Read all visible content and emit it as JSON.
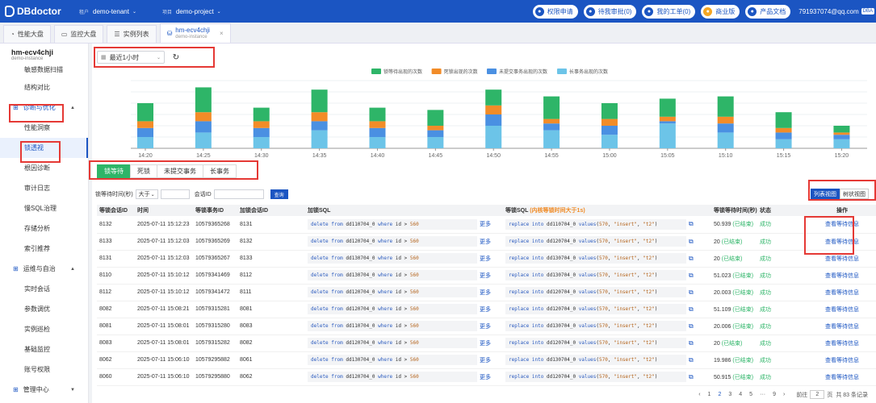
{
  "topbar": {
    "logo": "DBdoctor",
    "tenant_label": "租户",
    "tenant_value": "demo-tenant",
    "project_label": "项目",
    "project_value": "demo-project",
    "buttons": [
      {
        "label": "权限申请",
        "icon": "key-icon"
      },
      {
        "label": "待我审批(0)",
        "icon": "approval-icon"
      },
      {
        "label": "我的工单(0)",
        "icon": "ticket-icon"
      },
      {
        "label": "商业版",
        "icon": "crown-icon",
        "color": "#f5a623"
      },
      {
        "label": "产品文档",
        "icon": "doc-icon"
      }
    ],
    "email": "791937074@qq.com",
    "role": "DBA"
  },
  "tabs": [
    {
      "label": "性能大盘",
      "icon": "dashboard-icon"
    },
    {
      "label": "监控大盘",
      "icon": "monitor-icon"
    },
    {
      "label": "实例列表",
      "icon": "list-icon"
    },
    {
      "label": "hm-ecv4chji",
      "sub": "demo-instance",
      "icon": "database-icon",
      "active": true
    }
  ],
  "sidebar": {
    "title": "hm-ecv4chji",
    "subtitle": "demo-instance",
    "items_top": [
      "敏感数据扫描",
      "结构对比"
    ],
    "group1": "诊断与优化",
    "group1_items": [
      "性能洞察",
      "锁透视",
      "根因诊断",
      "审计日志",
      "慢SQL治理",
      "存储分析",
      "索引推荐"
    ],
    "group2": "运维与自治",
    "group2_items": [
      "实时会话",
      "参数调优",
      "实例巡检",
      "基础监控",
      "账号权限"
    ],
    "group3": "管理中心"
  },
  "controls": {
    "time_range": "最近1小时"
  },
  "chart_data": {
    "type": "bar",
    "stacked": true,
    "legend_position": "top",
    "categories": [
      "14:20",
      "14:25",
      "14:30",
      "14:35",
      "14:40",
      "14:45",
      "14:50",
      "14:55",
      "15:00",
      "15:05",
      "15:10",
      "15:15",
      "15:20"
    ],
    "tick_labels": [
      "14:20",
      "14:25",
      "14:30",
      "14:35",
      "14:40",
      "14:45",
      "14:50",
      "14:55",
      "15:00",
      "15:05",
      "15:10",
      "15:15",
      "15:20"
    ],
    "ylim": [
      0,
      30
    ],
    "series": [
      {
        "name": "长事务出现的次数",
        "color": "#6cc4e8",
        "values": [
          5,
          7,
          5,
          8,
          5,
          5,
          10,
          8,
          6,
          11,
          7,
          4,
          4
        ]
      },
      {
        "name": "未提交事务出现的次数",
        "color": "#4a90e2",
        "values": [
          4,
          5,
          4,
          4,
          4,
          3,
          5,
          3,
          4,
          1,
          4,
          3,
          2
        ]
      },
      {
        "name": "死锁出现的次数",
        "color": "#f28c28",
        "values": [
          3,
          4,
          3,
          4,
          3,
          2,
          4,
          2,
          3,
          2,
          3,
          2,
          1
        ]
      },
      {
        "name": "锁等待出现的次数",
        "color": "#2eb568",
        "values": [
          8,
          11,
          6,
          10,
          6,
          7,
          7,
          10,
          7,
          8,
          9,
          7,
          3
        ]
      }
    ],
    "legend_order": [
      "锁等待出现的次数",
      "死锁出现的次数",
      "未提交事务出现的次数",
      "长事务出现的次数"
    ]
  },
  "subtabs": [
    "锁等待",
    "死锁",
    "未提交事务",
    "长事务"
  ],
  "filters": {
    "wait_label": "锁等待时间(秒)",
    "op": "大于",
    "session_label": "会话ID",
    "query": "查询"
  },
  "view": {
    "list": "列表视图",
    "tree": "树状视图"
  },
  "table": {
    "headers": [
      "等锁会话ID",
      "时间",
      "等锁事务ID",
      "加锁会话ID",
      "加锁SQL",
      "",
      "等锁SQL",
      "(内核等锁时间大于1s)",
      "",
      "等锁等待时间(秒)",
      "状态",
      "操作"
    ],
    "more": "更多",
    "action": "查看等待信息",
    "rows": [
      {
        "sid": "8132",
        "time": "2025-07-11 15:12:23",
        "trx": "10579365268",
        "lsid": "8131",
        "ltable": "dd110704_0",
        "wtable": "dd110704_0",
        "wait": "50.939",
        "status": "(已结束)"
      },
      {
        "sid": "8133",
        "time": "2025-07-11 15:12:03",
        "trx": "10579365269",
        "lsid": "8132",
        "ltable": "dd120704_0",
        "wtable": "dd120704_0",
        "wait": "20",
        "status": "(已结束)"
      },
      {
        "sid": "8131",
        "time": "2025-07-11 15:12:03",
        "trx": "10579365267",
        "lsid": "8133",
        "ltable": "dd130704_0",
        "wtable": "dd130704_0",
        "wait": "20",
        "status": "(已结束)"
      },
      {
        "sid": "8110",
        "time": "2025-07-11 15:10:12",
        "trx": "10579341469",
        "lsid": "8112",
        "ltable": "dd130704_0",
        "wtable": "dd130704_0",
        "wait": "51.023",
        "status": "(已结束)"
      },
      {
        "sid": "8112",
        "time": "2025-07-11 15:10:12",
        "trx": "10579341472",
        "lsid": "8111",
        "ltable": "dd120704_0",
        "wtable": "dd120704_0",
        "wait": "20.003",
        "status": "(已结束)"
      },
      {
        "sid": "8082",
        "time": "2025-07-11 15:08:21",
        "trx": "10579315281",
        "lsid": "8081",
        "ltable": "dd120704_0",
        "wtable": "dd120704_0",
        "wait": "51.109",
        "status": "(已结束)"
      },
      {
        "sid": "8081",
        "time": "2025-07-11 15:08:01",
        "trx": "10579315280",
        "lsid": "8083",
        "ltable": "dd110704_0",
        "wtable": "dd130704_0",
        "wait": "20.006",
        "status": "(已结束)"
      },
      {
        "sid": "8083",
        "time": "2025-07-11 15:08:01",
        "trx": "10579315282",
        "lsid": "8082",
        "ltable": "dd120704_0",
        "wtable": "dd120704_0",
        "wait": "20",
        "status": "(已结束)"
      },
      {
        "sid": "8062",
        "time": "2025-07-11 15:06:10",
        "trx": "10579295882",
        "lsid": "8061",
        "ltable": "dd130704_0",
        "wtable": "dd130704_0",
        "wait": "19.986",
        "status": "(已结束)"
      },
      {
        "sid": "8060",
        "time": "2025-07-11 15:06:10",
        "trx": "10579295880",
        "lsid": "8062",
        "ltable": "dd120704_0",
        "wtable": "dd120704_0",
        "wait": "50.915",
        "status": "(已结束)"
      }
    ],
    "status_prefix": "成功"
  },
  "pager": {
    "pages": [
      "1",
      "2",
      "3",
      "4",
      "5",
      "9"
    ],
    "current": "2",
    "goto_label": "前往",
    "goto_value": "2",
    "total": "共 83 条记录"
  }
}
